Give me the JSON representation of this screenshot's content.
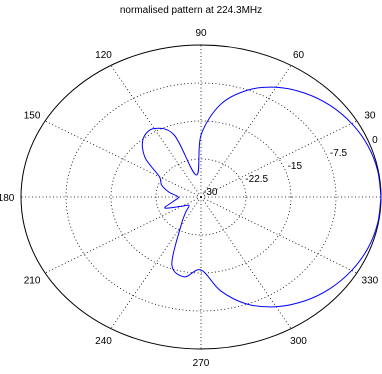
{
  "chart_data": {
    "type": "line",
    "subtype": "polar",
    "title": "normalised pattern at 224.3MHz",
    "angle_ticks": [
      "0",
      "30",
      "60",
      "90",
      "120",
      "150",
      "180",
      "210",
      "240",
      "270",
      "300",
      "330"
    ],
    "angle_tick_values_deg": [
      0,
      30,
      60,
      90,
      120,
      150,
      180,
      210,
      240,
      270,
      300,
      330
    ],
    "radial_ticks": [
      "0",
      "-7.5",
      "-15",
      "-22.5",
      "-30"
    ],
    "radial_tick_values_db": [
      0,
      -7.5,
      -15,
      -22.5,
      -30
    ],
    "radial_range_db": [
      -30,
      0
    ],
    "radial_tick_label_angle_deg": 20,
    "grid": true,
    "grid_style": "dotted",
    "series": [
      {
        "color": "#0000ff",
        "theta_deg": [
          0,
          10,
          20,
          30,
          40,
          50,
          60,
          70,
          80,
          90,
          100,
          110,
          120,
          130,
          140,
          150,
          160,
          170,
          180,
          190,
          200,
          210,
          220,
          230,
          240,
          250,
          260,
          270,
          280,
          290,
          300,
          310,
          320,
          330,
          340,
          350,
          360
        ],
        "r_db": [
          0,
          -0.1,
          -0.4,
          -1.0,
          -1.9,
          -3.2,
          -5.0,
          -7.6,
          -11.5,
          -17.8,
          -25.6,
          -17.0,
          -14.4,
          -15.0,
          -17.8,
          -22.0,
          -23.0,
          -24.6,
          -26.2,
          -25.4,
          -23.6,
          -26.4,
          -27.4,
          -26.0,
          -23.2,
          -15.8,
          -14.0,
          -15.6,
          -11.2,
          -7.5,
          -5.0,
          -3.2,
          -1.9,
          -1.0,
          -0.4,
          -0.1,
          0
        ]
      }
    ]
  }
}
